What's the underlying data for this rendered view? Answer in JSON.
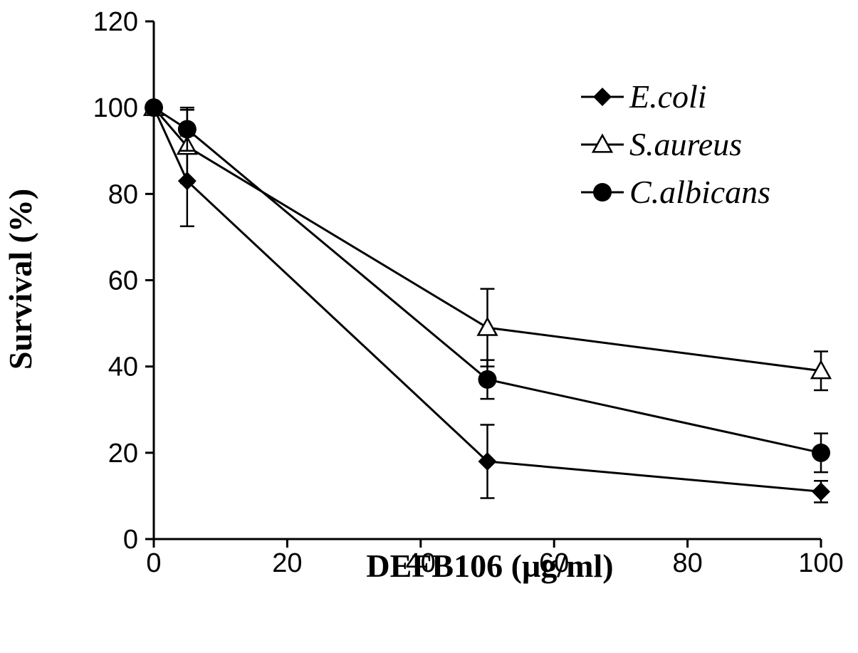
{
  "chart_data": {
    "type": "line",
    "xlabel": "DEFB106 (µg/ml)",
    "ylabel": "Survival (%)",
    "x": [
      0,
      5,
      50,
      100
    ],
    "xlim": [
      0,
      100
    ],
    "ylim": [
      0,
      120
    ],
    "xticks": [
      0,
      20,
      40,
      60,
      80,
      100
    ],
    "yticks": [
      0,
      20,
      40,
      60,
      80,
      100,
      120
    ],
    "xtick_labels": [
      "0",
      "20",
      "40",
      "60",
      "80",
      "100"
    ],
    "ytick_labels": [
      "0",
      "20",
      "40",
      "60",
      "80",
      "100",
      "120"
    ],
    "grid": false,
    "legend_position": "top-right",
    "series": [
      {
        "name": "E.coli",
        "marker": "diamond",
        "values": [
          100,
          83,
          18,
          11
        ],
        "errors": [
          0,
          10.5,
          8.5,
          2.5
        ]
      },
      {
        "name": "S.aureus",
        "marker": "open-triangle",
        "values": [
          100,
          91,
          49,
          39
        ],
        "errors": [
          0,
          8.5,
          9,
          4.5
        ]
      },
      {
        "name": "C.albicans",
        "marker": "circle",
        "values": [
          100,
          95,
          37,
          20
        ],
        "errors": [
          0,
          5,
          4.5,
          4.5
        ]
      }
    ]
  }
}
